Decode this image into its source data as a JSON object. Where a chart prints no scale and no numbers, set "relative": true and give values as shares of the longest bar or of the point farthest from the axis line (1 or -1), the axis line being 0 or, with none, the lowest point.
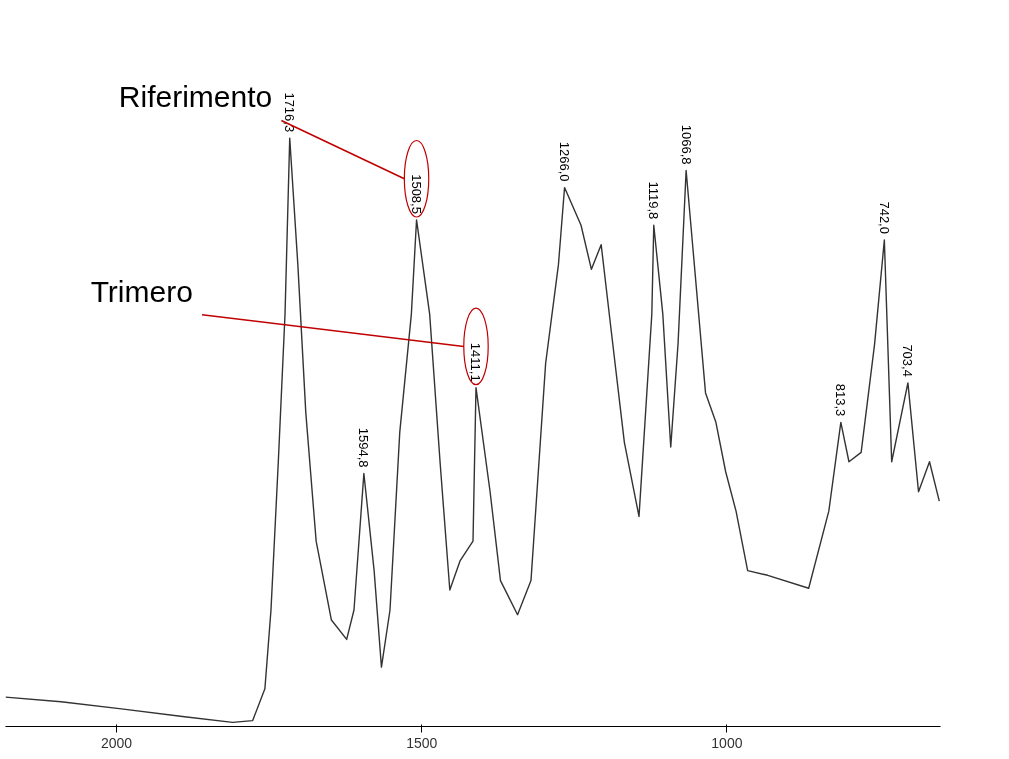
{
  "chart_data": {
    "type": "line",
    "relative": true,
    "color": "#333333",
    "x": [
      2182,
      2091,
      1992,
      1892,
      1810,
      1777,
      1757,
      1747,
      1735,
      1724,
      1716.3,
      1703,
      1690,
      1673,
      1648,
      1623,
      1611,
      1594.8,
      1578,
      1566,
      1552,
      1536,
      1517,
      1508.5,
      1487,
      1470,
      1454,
      1437,
      1416,
      1411.1,
      1388,
      1371,
      1343,
      1321,
      1297,
      1276,
      1266.0,
      1239,
      1222,
      1206,
      1189,
      1168,
      1144,
      1123,
      1119.8,
      1105,
      1092,
      1080,
      1066.8,
      1035,
      1018,
      1002,
      985,
      966,
      933,
      866,
      833,
      813.3,
      800,
      780,
      758,
      742.0,
      730,
      703.4,
      686,
      668,
      652
    ],
    "values": [
      0.05,
      0.042,
      0.03,
      0.017,
      0.007,
      0.01,
      0.064,
      0.198,
      0.45,
      0.701,
      1.0,
      0.785,
      0.534,
      0.315,
      0.181,
      0.148,
      0.198,
      0.43,
      0.265,
      0.101,
      0.198,
      0.5,
      0.701,
      0.861,
      0.701,
      0.45,
      0.232,
      0.282,
      0.315,
      0.576,
      0.399,
      0.248,
      0.19,
      0.248,
      0.617,
      0.785,
      0.916,
      0.852,
      0.777,
      0.819,
      0.668,
      0.483,
      0.357,
      0.701,
      0.852,
      0.701,
      0.475,
      0.651,
      0.945,
      0.567,
      0.517,
      0.433,
      0.366,
      0.265,
      0.257,
      0.235,
      0.366,
      0.517,
      0.45,
      0.466,
      0.65,
      0.827,
      0.45,
      0.584,
      0.399,
      0.45,
      0.383
    ],
    "xlim": [
      2182,
      650
    ],
    "xticks": [
      2000,
      1500,
      1000
    ],
    "grid": false,
    "annotations": [
      "Riferimento",
      "Trimero",
      {
        "text": "1716,3",
        "x": 1716.3,
        "y": 1.0
      },
      {
        "text": "1594,8",
        "x": 1594.8,
        "y": 0.43
      },
      {
        "text": "1508,5",
        "x": 1508.5,
        "y": 0.861
      },
      {
        "text": "1411,1",
        "x": 1411.1,
        "y": 0.576
      },
      {
        "text": "1266,0",
        "x": 1266.0,
        "y": 0.916
      },
      {
        "text": "1119,8",
        "x": 1119.8,
        "y": 0.852
      },
      {
        "text": "1066,8",
        "x": 1066.8,
        "y": 0.945
      },
      {
        "text": "813,3",
        "x": 813.3,
        "y": 0.517
      },
      {
        "text": "742,0",
        "x": 742.0,
        "y": 0.827
      },
      {
        "text": "703,4",
        "x": 703.4,
        "y": 0.584
      }
    ]
  }
}
